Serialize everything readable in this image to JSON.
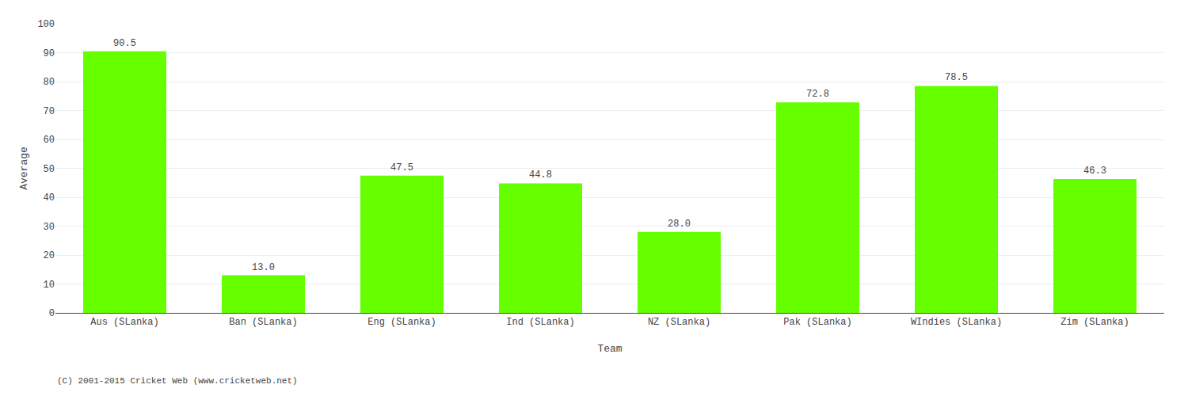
{
  "chart_data": {
    "type": "bar",
    "categories": [
      "Aus (SLanka)",
      "Ban (SLanka)",
      "Eng (SLanka)",
      "Ind (SLanka)",
      "NZ (SLanka)",
      "Pak (SLanka)",
      "WIndies (SLanka)",
      "Zim (SLanka)"
    ],
    "values": [
      90.5,
      13.0,
      47.5,
      44.8,
      28.0,
      72.8,
      78.5,
      46.3
    ],
    "value_labels": [
      "90.5",
      "13.0",
      "47.5",
      "44.8",
      "28.0",
      "72.8",
      "78.5",
      "46.3"
    ],
    "data_labels": true,
    "color": "#66ff00",
    "xlabel": "Team",
    "ylabel": "Average",
    "ylim": [
      0,
      100
    ],
    "yticks": [
      0,
      10,
      20,
      30,
      40,
      50,
      60,
      70,
      80,
      90,
      100
    ],
    "grid": true,
    "annotations": [
      {
        "text": "(C) 2001-2015 Cricket Web (www.cricketweb.net)"
      }
    ]
  }
}
